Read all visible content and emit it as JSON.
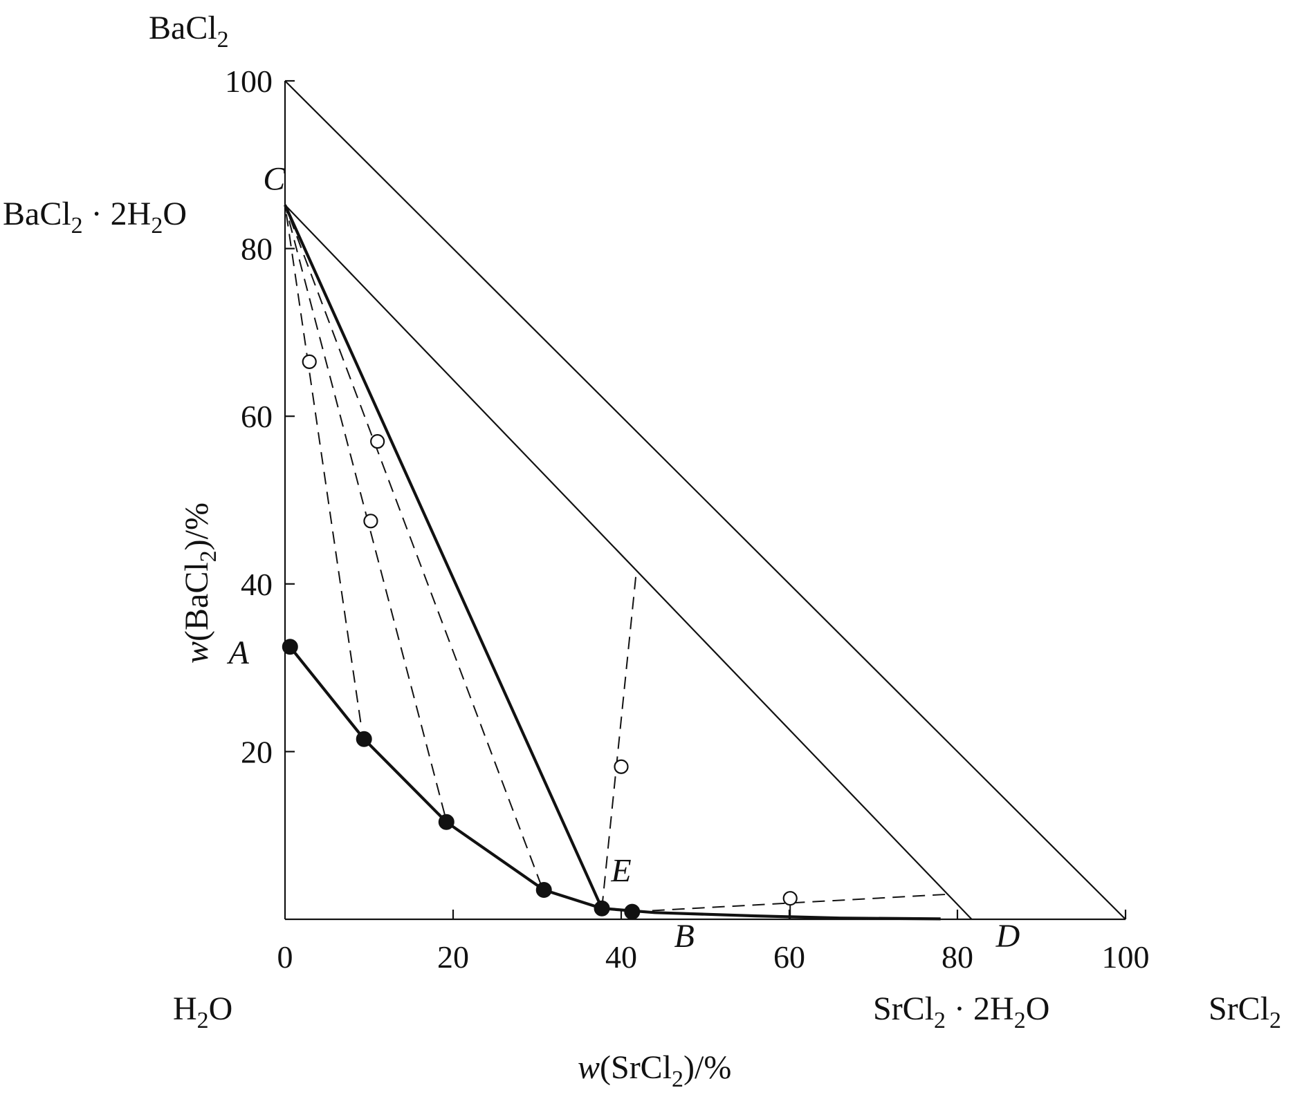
{
  "chart_data": {
    "type": "scatter",
    "title": "",
    "xlabel": {
      "pre": "w",
      "mid": "(SrCl",
      "sub": "2",
      "post": ")/%"
    },
    "ylabel": {
      "pre": "w",
      "mid": "(BaCl",
      "sub": "2",
      "post": ")/%"
    },
    "xlim": [
      0,
      100
    ],
    "ylim": [
      0,
      100
    ],
    "grid": false,
    "x_ticks": [
      {
        "value": 0,
        "label": "0"
      },
      {
        "value": 20,
        "label": "20"
      },
      {
        "value": 40,
        "label": "40"
      },
      {
        "value": 60,
        "label": "60"
      },
      {
        "value": 80,
        "label": "80"
      },
      {
        "value": 100,
        "label": "100"
      }
    ],
    "y_ticks": [
      {
        "value": 20,
        "label": "20"
      },
      {
        "value": 40,
        "label": "40"
      },
      {
        "value": 60,
        "label": "60"
      },
      {
        "value": 80,
        "label": "80"
      },
      {
        "value": 100,
        "label": "100"
      }
    ],
    "corner_labels": {
      "top": {
        "main": "BaCl",
        "sub": "2",
        "tail": ""
      },
      "hydrate_ba": {
        "main": "BaCl",
        "sub": "2",
        "tail": " · 2H",
        "sub2": "2",
        "tail2": "O"
      },
      "water": {
        "main": "H",
        "sub": "2",
        "tail": "O"
      },
      "hydrate_sr": {
        "main": "SrCl",
        "sub": "2",
        "tail": " · 2H",
        "sub2": "2",
        "tail2": "O"
      },
      "right": {
        "main": "SrCl",
        "sub": "2",
        "tail": ""
      }
    },
    "point_labels": {
      "A": {
        "text": "A",
        "x": -5.5,
        "y": 30.5
      },
      "B": {
        "text": "B",
        "x": 47.5,
        "y": -3.3
      },
      "C": {
        "text": "C",
        "x": -1.3,
        "y": 87.0
      },
      "D": {
        "text": "D",
        "x": 86.0,
        "y": -3.3
      },
      "E": {
        "text": "E",
        "x": 40.0,
        "y": 4.5
      }
    },
    "vertices": {
      "C": [
        0,
        85.2
      ],
      "D": [
        81.7,
        0
      ],
      "E": [
        37.7,
        1.3
      ]
    },
    "solubility_curve_AE": [
      [
        0.6,
        32.5
      ],
      [
        9.4,
        21.5
      ],
      [
        19.2,
        11.6
      ],
      [
        30.8,
        3.5
      ],
      [
        37.7,
        1.3
      ]
    ],
    "solubility_curve_EB": [
      [
        37.7,
        1.3
      ],
      [
        44,
        0.8
      ],
      [
        56,
        0.4
      ],
      [
        66,
        0.15
      ],
      [
        78,
        0.05
      ]
    ],
    "liquid_points": [
      [
        0.6,
        32.5
      ],
      [
        9.4,
        21.5
      ],
      [
        19.2,
        11.6
      ],
      [
        30.8,
        3.5
      ],
      [
        37.7,
        1.3
      ],
      [
        41.3,
        0.9
      ]
    ],
    "wet_residue_points": [
      [
        2.9,
        66.5
      ],
      [
        10.2,
        47.5
      ],
      [
        11.0,
        57.0
      ],
      [
        40.0,
        18.2
      ],
      [
        60.1,
        2.5
      ]
    ],
    "tie_lines": [
      [
        [
          9.0,
          23.5
        ],
        [
          0,
          85.2
        ]
      ],
      [
        [
          19.0,
          12.5
        ],
        [
          0,
          85.2
        ]
      ],
      [
        [
          30.5,
          4.0
        ],
        [
          0,
          85.2
        ]
      ],
      [
        [
          37.7,
          1.3
        ],
        [
          41.8,
          41.5
        ]
      ],
      [
        [
          41.3,
          0.9
        ],
        [
          79.2,
          3.0
        ]
      ]
    ],
    "residue_drop": [
      [
        60.1,
        2.5
      ],
      [
        60.1,
        0
      ]
    ]
  }
}
